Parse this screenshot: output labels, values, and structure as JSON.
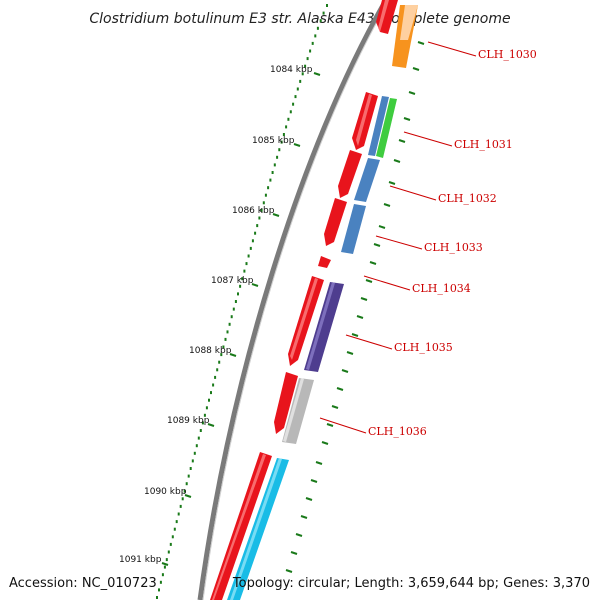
{
  "title": "Clostridium botulinum E3 str. Alaska E43, complete genome",
  "footer": {
    "accession": "Accession: NC_010723",
    "summary": "Topology: circular; Length: 3,659,644 bp; Genes: 3,370"
  },
  "ruler": {
    "unit": "kbp",
    "ticks": [
      "1084 kbp",
      "1085 kbp",
      "1086 kbp",
      "1087 kbp",
      "1088 kbp",
      "1089 kbp",
      "1090 kbp",
      "1091 kbp"
    ]
  },
  "colors": {
    "backbone": "#7a7a7a",
    "tick": "#1a7a1a",
    "label": "#cc0000",
    "gene_strand": "#e8141c"
  },
  "genes": [
    {
      "label": "CLH_1030",
      "color": "#f7931e"
    },
    {
      "label": "CLH_1031",
      "color": "#3fcc3f"
    },
    {
      "label": "CLH_1032",
      "color": "#4a82c0"
    },
    {
      "label": "CLH_1033",
      "color": "#4a82c0"
    },
    {
      "label": "CLH_1034",
      "color": "#e8141c"
    },
    {
      "label": "CLH_1035",
      "color": "#4e3d8f"
    },
    {
      "label": "CLH_1036",
      "color": "#b8b8b8"
    },
    {
      "label": "",
      "color": "#19bce6"
    }
  ]
}
